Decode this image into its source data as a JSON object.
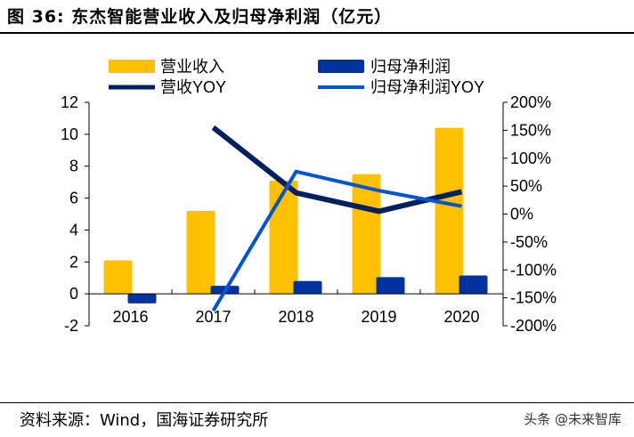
{
  "title": "图 36:  东杰智能营业收入及归母净利润（亿元）",
  "source": "资料来源：Wind，国海证券研究所",
  "watermark": "头条 @未来智库",
  "chart_data": {
    "type": "bar+line",
    "categories": [
      "2016",
      "2017",
      "2018",
      "2019",
      "2020"
    ],
    "left_axis": {
      "ylim": [
        -2,
        12
      ],
      "ticks": [
        "12",
        "10",
        "8",
        "6",
        "4",
        "2",
        "0",
        "-2"
      ]
    },
    "right_axis": {
      "ylim": [
        -200,
        200
      ],
      "ticks": [
        "200%",
        "150%",
        "100%",
        "50%",
        "0%",
        "-50%",
        "-100%",
        "-150%",
        "-200%"
      ]
    },
    "series": [
      {
        "name": "营业收入",
        "type": "bar",
        "axis": "left",
        "color": "#FFC000",
        "values": [
          2.1,
          5.2,
          7.1,
          7.5,
          10.4
        ]
      },
      {
        "name": "归母净利润",
        "type": "bar",
        "axis": "left",
        "color": "#0033A0",
        "values": [
          -0.6,
          0.5,
          0.8,
          1.05,
          1.15
        ]
      },
      {
        "name": "营收YOY",
        "type": "line",
        "axis": "right",
        "color": "#002060",
        "values": [
          null,
          155,
          38,
          5,
          40
        ]
      },
      {
        "name": "归母净利润YOY",
        "type": "line",
        "axis": "right",
        "color": "#0055D4",
        "values": [
          null,
          -173,
          76,
          42,
          14
        ]
      }
    ],
    "legend": "top",
    "grid": false
  }
}
